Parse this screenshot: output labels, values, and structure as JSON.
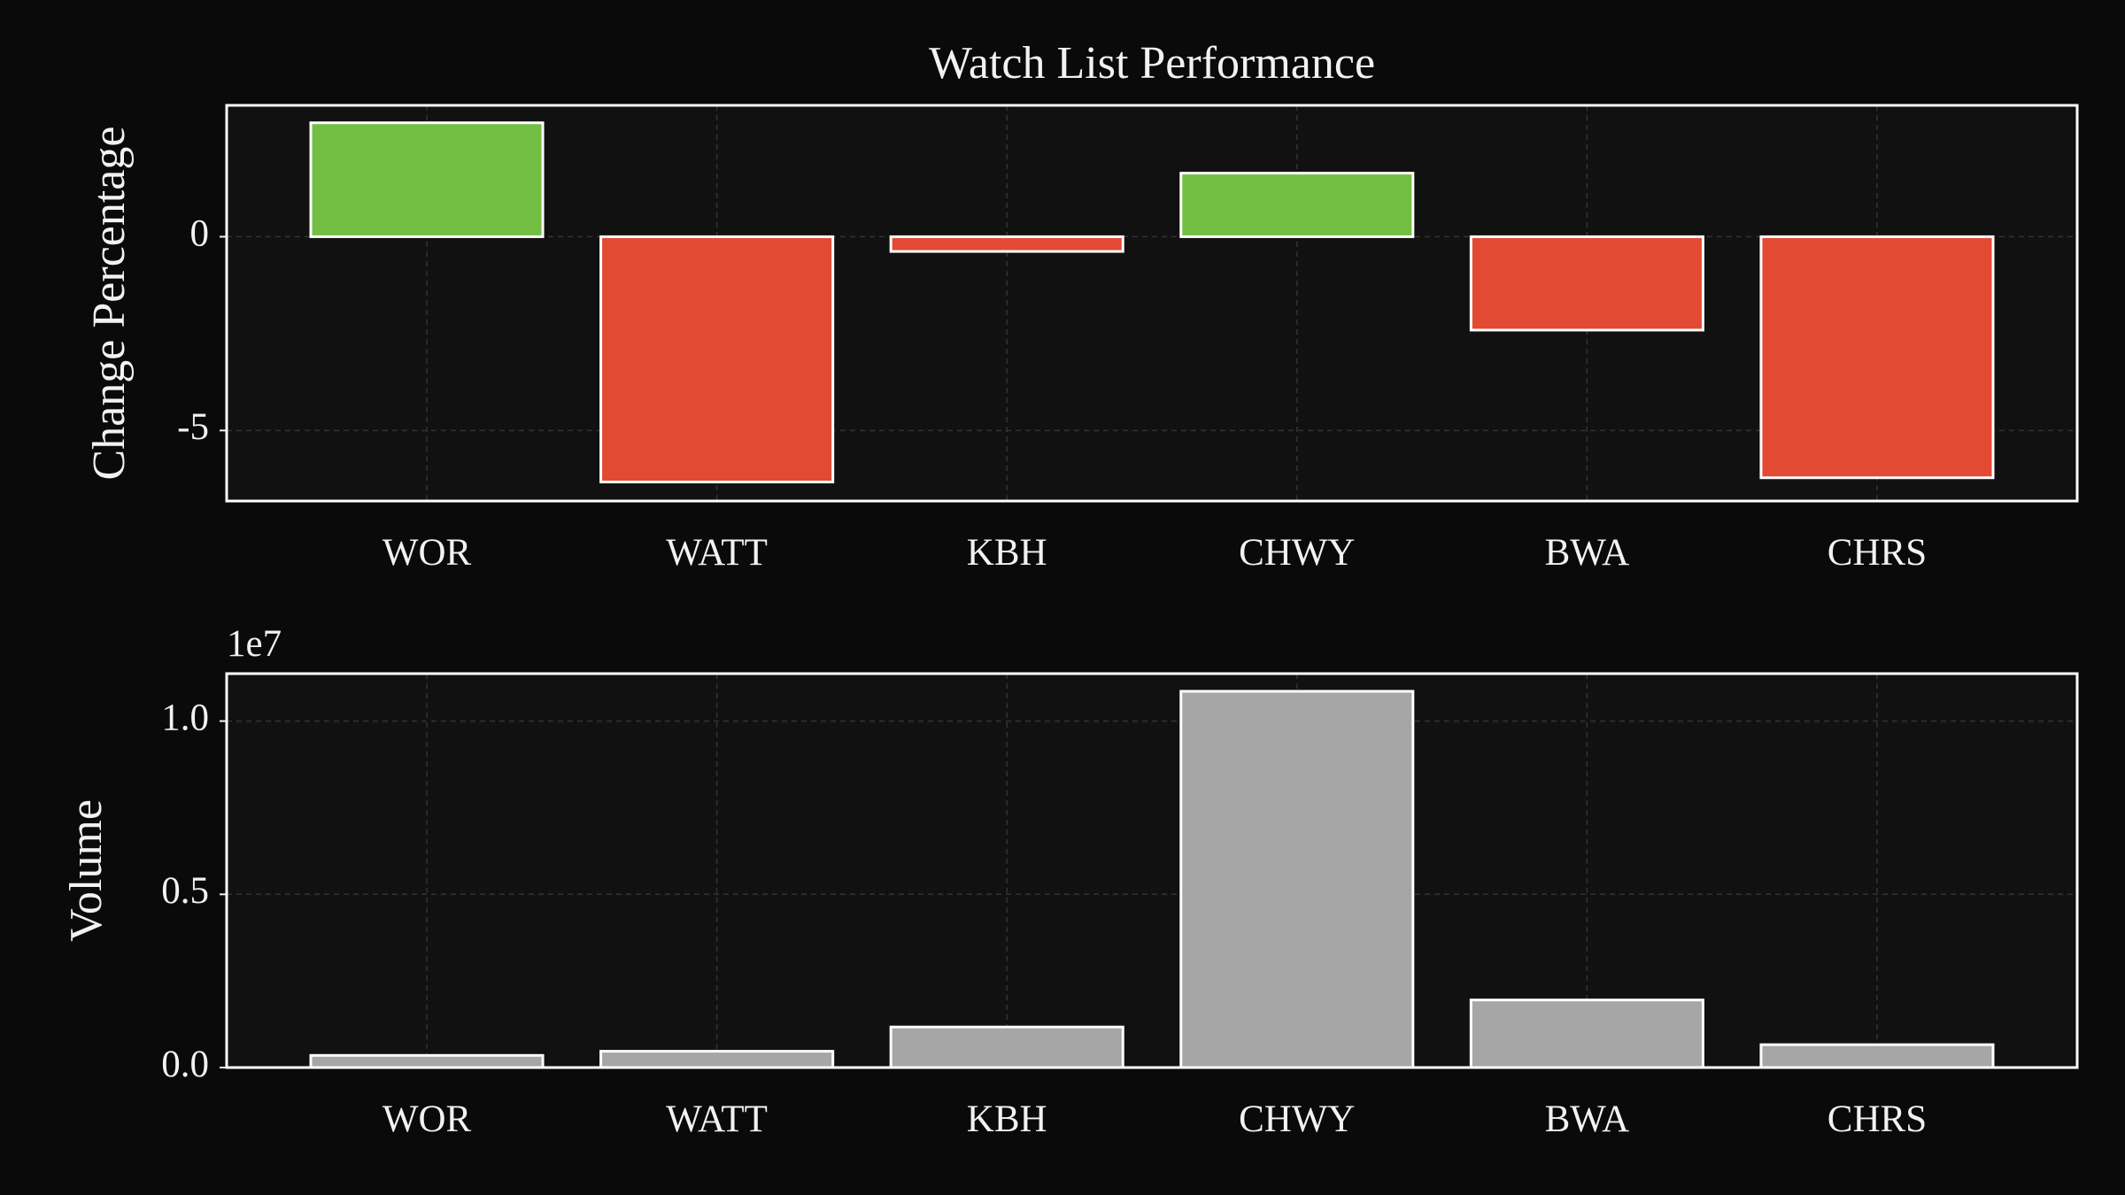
{
  "chart_data": [
    {
      "type": "bar",
      "title": "Watch List Performance",
      "ylabel": "Change Percentage",
      "categories": [
        "WOR",
        "WATT",
        "KBH",
        "CHWY",
        "BWA",
        "CHRS"
      ],
      "values": [
        2.94,
        -6.33,
        -0.38,
        1.64,
        -2.41,
        -6.22
      ],
      "positive_color": "#72bf44",
      "negative_color": "#e34a33",
      "ylim": [
        -6.82,
        3.39
      ],
      "yticks": [
        -5,
        0
      ],
      "grid": true
    },
    {
      "type": "bar",
      "ylabel": "Volume",
      "offset_label": "1e7",
      "categories": [
        "WOR",
        "WATT",
        "KBH",
        "CHWY",
        "BWA",
        "CHRS"
      ],
      "values": [
        350000,
        470000,
        1170000,
        10860000,
        1950000,
        660000
      ],
      "color": "#a6a6a6",
      "ylim": [
        0,
        11370000
      ],
      "yticks": [
        {
          "value": 0,
          "label": "0.0"
        },
        {
          "value": 5000000,
          "label": "0.5"
        },
        {
          "value": 10000000,
          "label": "1.0"
        }
      ],
      "grid": true
    }
  ]
}
